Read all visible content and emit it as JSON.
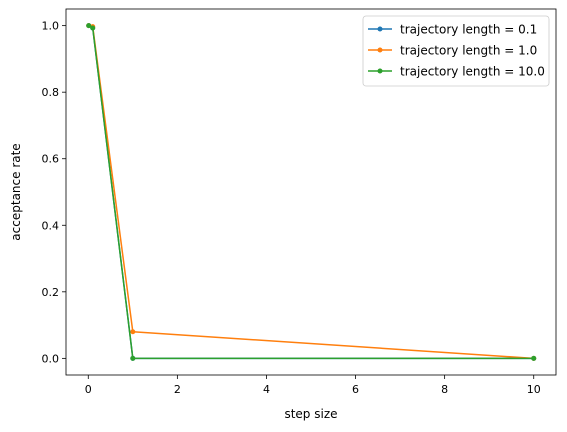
{
  "chart_data": {
    "type": "line",
    "title": "",
    "xlabel": "step size",
    "ylabel": "acceptance rate",
    "xlim": [
      -0.5,
      10.5
    ],
    "ylim": [
      -0.05,
      1.05
    ],
    "xticks": [
      0,
      2,
      4,
      6,
      8,
      10
    ],
    "yticks": [
      0.0,
      0.2,
      0.4,
      0.6,
      0.8,
      1.0
    ],
    "xtick_labels": [
      "0",
      "2",
      "4",
      "6",
      "8",
      "10"
    ],
    "ytick_labels": [
      "0.0",
      "0.2",
      "0.4",
      "0.6",
      "0.8",
      "1.0"
    ],
    "grid": false,
    "legend_position": "top-right",
    "x": [
      0.01,
      0.1,
      1.0,
      10.0
    ],
    "series": [
      {
        "name": "trajectory length = 0.1",
        "color": "#1f77b4",
        "values": [
          1.0,
          0.993,
          0.0,
          0.0
        ]
      },
      {
        "name": "trajectory length = 1.0",
        "color": "#ff7f0e",
        "values": [
          1.0,
          0.997,
          0.08,
          0.0
        ]
      },
      {
        "name": "trajectory length = 10.0",
        "color": "#2ca02c",
        "values": [
          1.0,
          0.993,
          0.0,
          0.0
        ]
      }
    ]
  }
}
